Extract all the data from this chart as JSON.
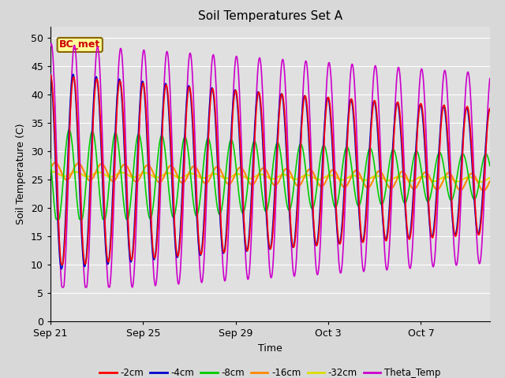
{
  "title": "Soil Temperatures Set A",
  "xlabel": "Time",
  "ylabel": "Soil Temperature (C)",
  "ylim": [
    0,
    52
  ],
  "yticks": [
    0,
    5,
    10,
    15,
    20,
    25,
    30,
    35,
    40,
    45,
    50
  ],
  "xtick_labels": [
    "Sep 21",
    "Sep 25",
    "Sep 29",
    "Oct 3",
    "Oct 7"
  ],
  "colors": {
    "2cm": "#ff0000",
    "4cm": "#0000cc",
    "8cm": "#00cc00",
    "16cm": "#ff8800",
    "32cm": "#dddd00",
    "theta": "#cc00cc"
  },
  "legend_labels": [
    "-2cm",
    "-4cm",
    "-8cm",
    "-16cm",
    "-32cm",
    "Theta_Temp"
  ],
  "annotation_text": "BC_met",
  "annotation_color": "#cc0000",
  "annotation_bg": "#ffff99",
  "fig_bg": "#d8d8d8",
  "plot_bg": "#e0e0e0"
}
